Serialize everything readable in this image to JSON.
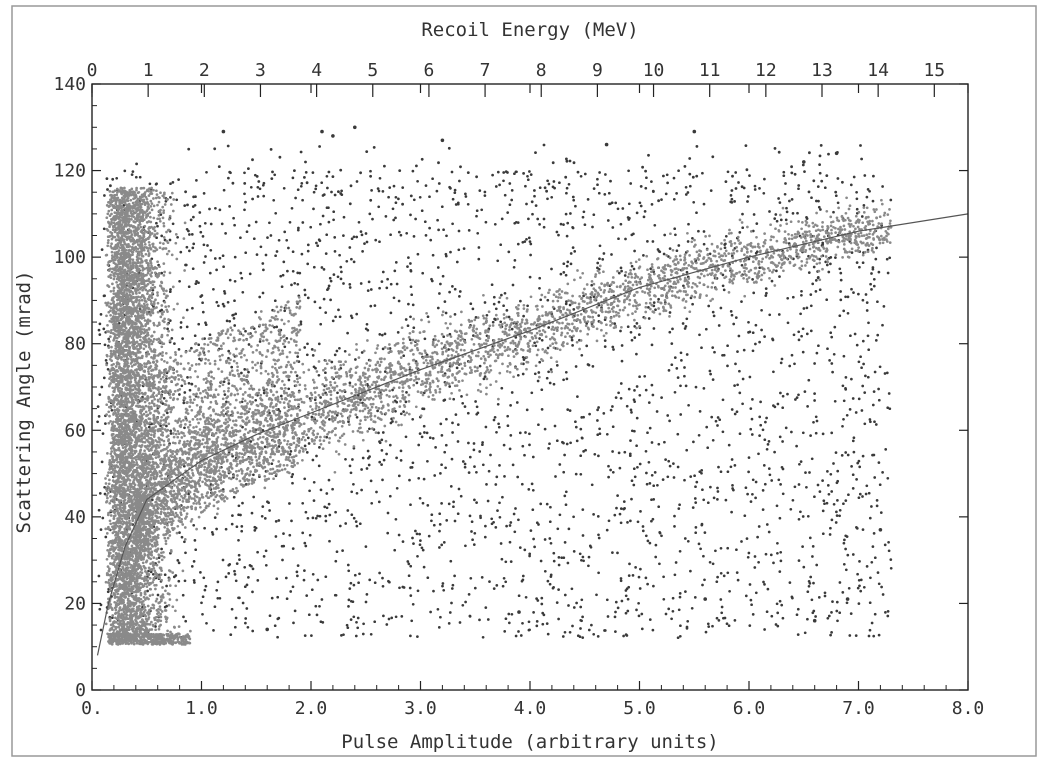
{
  "chart_data": {
    "type": "scatter",
    "title": "",
    "xlabel": "Pulse Amplitude (arbitrary units)",
    "ylabel": "Scattering Angle (mrad)",
    "x2label": "Recoil Energy (MeV)",
    "xlim": [
      0,
      8
    ],
    "ylim": [
      0,
      140
    ],
    "x2lim": [
      0,
      15.6
    ],
    "x_ticks": [
      0,
      1,
      2,
      3,
      4,
      5,
      6,
      7,
      8
    ],
    "x_tick_labels": [
      "0.",
      "1.0",
      "2.0",
      "3.0",
      "4.0",
      "5.0",
      "6.0",
      "7.0",
      "8.0"
    ],
    "y_ticks": [
      0,
      20,
      40,
      60,
      80,
      100,
      120,
      140
    ],
    "y_tick_labels": [
      "0",
      "20",
      "40",
      "60",
      "80",
      "100",
      "120",
      "140"
    ],
    "x2_ticks": [
      0,
      1,
      2,
      3,
      4,
      5,
      6,
      7,
      8,
      9,
      10,
      11,
      12,
      13,
      14,
      15
    ],
    "x2_tick_labels": [
      "0",
      "1",
      "2",
      "3",
      "4",
      "5",
      "6",
      "7",
      "8",
      "9",
      "10",
      "11",
      "12",
      "13",
      "14",
      "15"
    ],
    "grid": false,
    "legend": "none",
    "marker_color": "#3a3a3a",
    "dense_marker_color": "#8a8a8a",
    "fit_curve": {
      "points": [
        [
          0.05,
          8
        ],
        [
          0.15,
          20
        ],
        [
          0.3,
          33
        ],
        [
          0.5,
          44
        ],
        [
          1.0,
          53
        ],
        [
          1.5,
          59
        ],
        [
          2.0,
          64
        ],
        [
          3.0,
          74
        ],
        [
          4.0,
          83
        ],
        [
          5.0,
          93
        ],
        [
          6.0,
          100
        ],
        [
          7.0,
          106
        ],
        [
          8.0,
          110
        ]
      ]
    },
    "regions": [
      {
        "name": "vertical-band",
        "x_range": [
          0.1,
          0.8
        ],
        "y_range": [
          10,
          116
        ],
        "density": "very high"
      },
      {
        "name": "diagonal-band",
        "from": [
          0.5,
          44
        ],
        "to": [
          7.2,
          107
        ],
        "density": "high"
      },
      {
        "name": "background",
        "x_range": [
          0.05,
          7.3
        ],
        "y_range": [
          12,
          130
        ],
        "density": "moderate"
      }
    ],
    "notable_points": [
      {
        "x": 1.2,
        "y": 129
      },
      {
        "x": 2.1,
        "y": 129
      },
      {
        "x": 2.2,
        "y": 128
      },
      {
        "x": 2.4,
        "y": 130
      },
      {
        "x": 3.2,
        "y": 127
      },
      {
        "x": 4.7,
        "y": 126
      },
      {
        "x": 5.5,
        "y": 129
      },
      {
        "x": 6.5,
        "y": 122
      },
      {
        "x": 6.8,
        "y": 124
      },
      {
        "x": 3.9,
        "y": 18
      },
      {
        "x": 5.6,
        "y": 21
      },
      {
        "x": 6.9,
        "y": 21
      },
      {
        "x": 6.6,
        "y": 16
      },
      {
        "x": 7.2,
        "y": 37
      },
      {
        "x": 1.6,
        "y": 14
      }
    ]
  }
}
